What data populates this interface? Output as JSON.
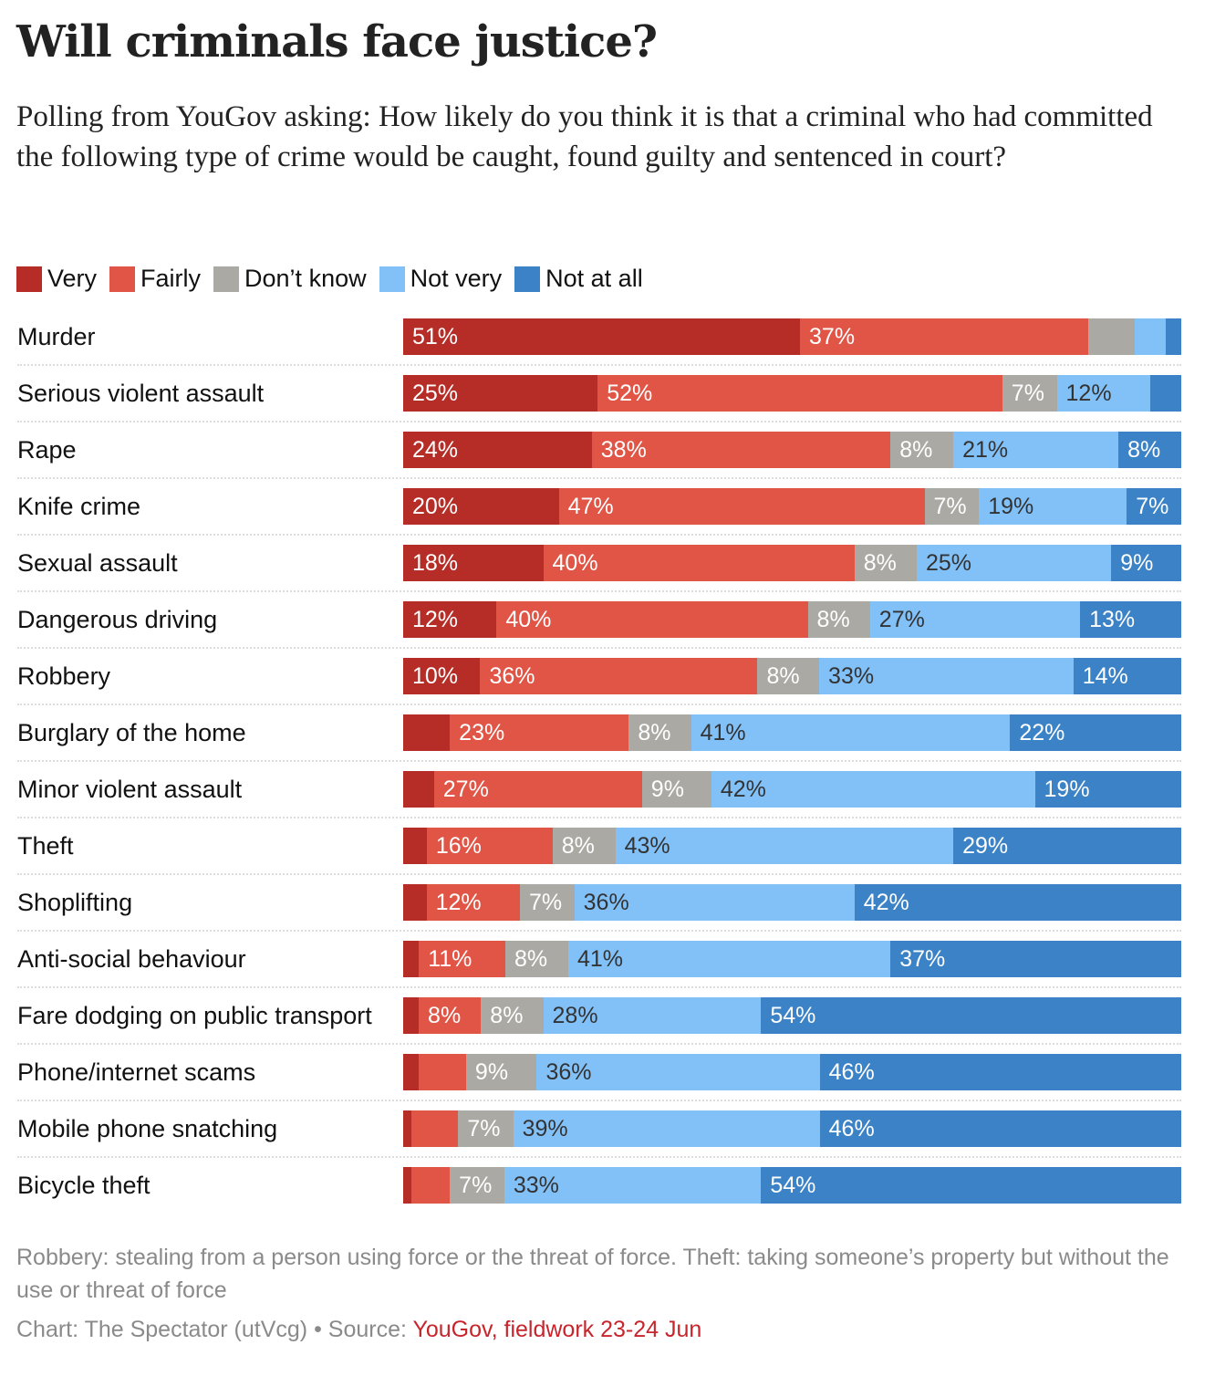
{
  "title": "Will criminals face justice?",
  "subtitle": "Polling from YouGov asking: How likely do you think it is that a criminal who had committed the following type of crime would be caught, found guilty and sentenced in court?",
  "note": "Robbery: stealing from a person using force or the threat of force. Theft: taking someone’s property but without the use or threat of force",
  "credit": {
    "prefix": "Chart: The Spectator (utVcg) • Source: ",
    "source": "YouGov, fieldwork 23-24 Jun"
  },
  "chart_data": {
    "type": "bar",
    "orientation": "horizontal",
    "stacked": true,
    "unit": "%",
    "legend_position": "top-left",
    "categories": [
      "Murder",
      "Serious violent assault",
      "Rape",
      "Knife crime",
      "Sexual assault",
      "Dangerous driving",
      "Robbery",
      "Burglary of the home",
      "Minor violent assault",
      "Theft",
      "Shoplifting",
      "Anti-social behaviour",
      "Fare dodging on public transport",
      "Phone/internet scams",
      "Mobile phone snatching",
      "Bicycle theft"
    ],
    "series": [
      {
        "name": "Very",
        "color": "#b52d26",
        "label_color": "#ffffff",
        "values": [
          51,
          25,
          24,
          20,
          18,
          12,
          10,
          6,
          4,
          3,
          3,
          2,
          2,
          2,
          1,
          1
        ]
      },
      {
        "name": "Fairly",
        "color": "#e05546",
        "label_color": "#ffffff",
        "values": [
          37,
          52,
          38,
          47,
          40,
          40,
          36,
          23,
          27,
          16,
          12,
          11,
          8,
          6,
          6,
          5
        ]
      },
      {
        "name": "Don’t know",
        "color": "#aba9a4",
        "label_color": "#ffffff",
        "values": [
          6,
          7,
          8,
          7,
          8,
          8,
          8,
          8,
          9,
          8,
          7,
          8,
          8,
          9,
          7,
          7
        ]
      },
      {
        "name": "Not very",
        "color": "#82c1f8",
        "label_color": "#333333",
        "values": [
          4,
          12,
          21,
          19,
          25,
          27,
          33,
          41,
          42,
          43,
          36,
          41,
          28,
          36,
          39,
          33
        ]
      },
      {
        "name": "Not at all",
        "color": "#3b83c6",
        "label_color": "#ffffff",
        "values": [
          2,
          4,
          8,
          7,
          9,
          13,
          14,
          22,
          19,
          29,
          42,
          37,
          54,
          46,
          46,
          54
        ]
      }
    ],
    "label_min_value": 7
  }
}
